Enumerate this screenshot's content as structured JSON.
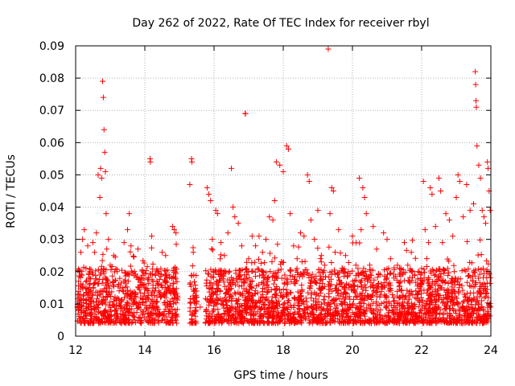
{
  "chart_data": {
    "type": "scatter",
    "title": "Day 262 of 2022, Rate Of TEC Index for receiver rbyl",
    "xlabel": "GPS time / hours",
    "ylabel": "ROTI / TECUs",
    "xlim": [
      12,
      24
    ],
    "ylim": [
      0,
      0.09
    ],
    "xticks": [
      12,
      14,
      16,
      18,
      20,
      22,
      24
    ],
    "xtick_labels": [
      "12",
      "14",
      "16",
      "18",
      "20",
      "22",
      "24"
    ],
    "yticks": [
      0,
      0.01,
      0.02,
      0.03,
      0.04,
      0.05,
      0.06,
      0.07,
      0.08,
      0.09
    ],
    "ytick_labels": [
      "0",
      "0.01",
      "0.02",
      "0.03",
      "0.04",
      "0.05",
      "0.06",
      "0.07",
      "0.08",
      "0.09"
    ],
    "grid": true,
    "marker": "+",
    "color": "#ff0000",
    "series": [
      {
        "name": "ROTI",
        "points": [
          [
            12.05,
            0.009
          ],
          [
            12.1,
            0.012
          ],
          [
            12.15,
            0.026
          ],
          [
            12.2,
            0.03
          ],
          [
            12.25,
            0.033
          ],
          [
            12.3,
            0.021
          ],
          [
            12.35,
            0.028
          ],
          [
            12.4,
            0.016
          ],
          [
            12.45,
            0.011
          ],
          [
            12.5,
            0.029
          ],
          [
            12.55,
            0.026
          ],
          [
            12.6,
            0.032
          ],
          [
            12.65,
            0.05
          ],
          [
            12.7,
            0.043
          ],
          [
            12.72,
            0.052
          ],
          [
            12.75,
            0.049
          ],
          [
            12.78,
            0.079
          ],
          [
            12.8,
            0.074
          ],
          [
            12.82,
            0.064
          ],
          [
            12.84,
            0.057
          ],
          [
            12.86,
            0.051
          ],
          [
            12.88,
            0.038
          ],
          [
            12.9,
            0.027
          ],
          [
            12.95,
            0.03
          ],
          [
            13.0,
            0.022
          ],
          [
            13.1,
            0.025
          ],
          [
            13.2,
            0.02
          ],
          [
            13.3,
            0.015
          ],
          [
            13.4,
            0.029
          ],
          [
            13.5,
            0.033
          ],
          [
            13.55,
            0.038
          ],
          [
            13.6,
            0.028
          ],
          [
            13.7,
            0.02
          ],
          [
            13.8,
            0.027
          ],
          [
            13.9,
            0.018
          ],
          [
            14.0,
            0.016
          ],
          [
            14.05,
            0.012
          ],
          [
            14.15,
            0.055
          ],
          [
            14.16,
            0.054
          ],
          [
            14.2,
            0.031
          ],
          [
            14.3,
            0.019
          ],
          [
            14.4,
            0.014
          ],
          [
            14.5,
            0.026
          ],
          [
            14.6,
            0.025
          ],
          [
            14.7,
            0.019
          ],
          [
            14.8,
            0.034
          ],
          [
            14.85,
            0.033
          ],
          [
            14.9,
            0.032
          ],
          [
            14.95,
            0.012
          ],
          [
            15.3,
            0.047
          ],
          [
            15.35,
            0.055
          ],
          [
            15.36,
            0.054
          ],
          [
            15.4,
            0.026
          ],
          [
            15.5,
            0.012
          ],
          [
            15.6,
            0.009
          ],
          [
            15.8,
            0.046
          ],
          [
            15.85,
            0.044
          ],
          [
            15.9,
            0.042
          ],
          [
            15.95,
            0.03
          ],
          [
            16.05,
            0.039
          ],
          [
            16.1,
            0.038
          ],
          [
            16.2,
            0.029
          ],
          [
            16.3,
            0.025
          ],
          [
            16.4,
            0.032
          ],
          [
            16.5,
            0.052
          ],
          [
            16.55,
            0.04
          ],
          [
            16.6,
            0.037
          ],
          [
            16.7,
            0.035
          ],
          [
            16.8,
            0.028
          ],
          [
            16.9,
            0.069
          ],
          [
            16.91,
            0.069
          ],
          [
            17.0,
            0.024
          ],
          [
            17.1,
            0.031
          ],
          [
            17.2,
            0.028
          ],
          [
            17.3,
            0.031
          ],
          [
            17.4,
            0.026
          ],
          [
            17.5,
            0.03
          ],
          [
            17.6,
            0.037
          ],
          [
            17.7,
            0.036
          ],
          [
            17.75,
            0.042
          ],
          [
            17.8,
            0.054
          ],
          [
            17.9,
            0.053
          ],
          [
            18.0,
            0.051
          ],
          [
            18.1,
            0.059
          ],
          [
            18.15,
            0.058
          ],
          [
            18.2,
            0.038
          ],
          [
            18.3,
            0.028
          ],
          [
            18.4,
            0.024
          ],
          [
            18.5,
            0.032
          ],
          [
            18.6,
            0.031
          ],
          [
            18.7,
            0.05
          ],
          [
            18.75,
            0.048
          ],
          [
            18.8,
            0.036
          ],
          [
            18.9,
            0.03
          ],
          [
            19.0,
            0.039
          ],
          [
            19.1,
            0.023
          ],
          [
            19.2,
            0.022
          ],
          [
            19.3,
            0.089
          ],
          [
            19.35,
            0.038
          ],
          [
            19.4,
            0.046
          ],
          [
            19.45,
            0.045
          ],
          [
            19.5,
            0.026
          ],
          [
            19.6,
            0.033
          ],
          [
            19.7,
            0.021
          ],
          [
            19.8,
            0.025
          ],
          [
            19.9,
            0.016
          ],
          [
            20.0,
            0.031
          ],
          [
            20.1,
            0.022
          ],
          [
            20.2,
            0.049
          ],
          [
            20.25,
            0.033
          ],
          [
            20.3,
            0.046
          ],
          [
            20.35,
            0.043
          ],
          [
            20.4,
            0.038
          ],
          [
            20.5,
            0.022
          ],
          [
            20.6,
            0.034
          ],
          [
            20.7,
            0.027
          ],
          [
            20.8,
            0.019
          ],
          [
            20.9,
            0.032
          ],
          [
            21.0,
            0.03
          ],
          [
            21.1,
            0.024
          ],
          [
            21.2,
            0.018
          ],
          [
            21.3,
            0.022
          ],
          [
            21.4,
            0.021
          ],
          [
            21.5,
            0.029
          ],
          [
            21.6,
            0.022
          ],
          [
            21.7,
            0.026
          ],
          [
            21.8,
            0.019
          ],
          [
            21.9,
            0.02
          ],
          [
            22.0,
            0.021
          ],
          [
            22.05,
            0.048
          ],
          [
            22.1,
            0.033
          ],
          [
            22.2,
            0.029
          ],
          [
            22.25,
            0.046
          ],
          [
            22.3,
            0.044
          ],
          [
            22.4,
            0.034
          ],
          [
            22.5,
            0.049
          ],
          [
            22.55,
            0.045
          ],
          [
            22.6,
            0.029
          ],
          [
            22.7,
            0.038
          ],
          [
            22.8,
            0.036
          ],
          [
            22.9,
            0.031
          ],
          [
            23.0,
            0.043
          ],
          [
            23.05,
            0.05
          ],
          [
            23.1,
            0.048
          ],
          [
            23.2,
            0.037
          ],
          [
            23.3,
            0.047
          ],
          [
            23.4,
            0.039
          ],
          [
            23.5,
            0.041
          ],
          [
            23.55,
            0.082
          ],
          [
            23.56,
            0.078
          ],
          [
            23.57,
            0.073
          ],
          [
            23.58,
            0.071
          ],
          [
            23.6,
            0.059
          ],
          [
            23.65,
            0.053
          ],
          [
            23.7,
            0.049
          ],
          [
            23.75,
            0.039
          ],
          [
            23.8,
            0.037
          ],
          [
            23.85,
            0.035
          ],
          [
            23.9,
            0.054
          ],
          [
            23.92,
            0.052
          ],
          [
            23.95,
            0.045
          ],
          [
            23.98,
            0.039
          ]
        ],
        "band": {
          "segments": [
            [
              12.05,
              14.95
            ],
            [
              15.3,
              15.5
            ],
            [
              15.75,
              23.98
            ]
          ],
          "low": 0.004,
          "high": 0.021
        }
      }
    ]
  }
}
